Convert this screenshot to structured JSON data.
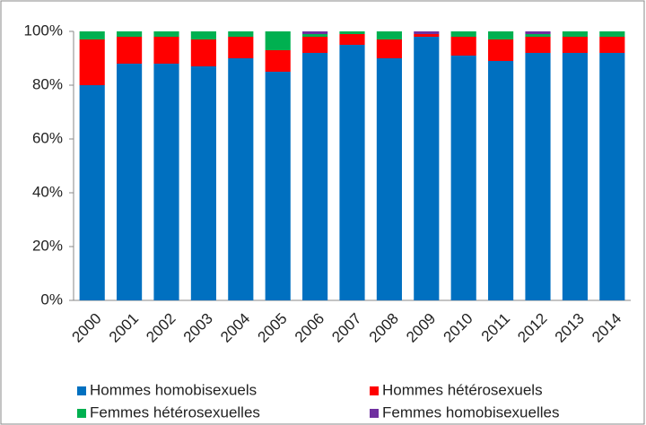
{
  "chart_data": {
    "type": "stacked_bar",
    "categories": [
      "2000",
      "2001",
      "2002",
      "2003",
      "2004",
      "2005",
      "2006",
      "2007",
      "2008",
      "2009",
      "2010",
      "2011",
      "2012",
      "2013",
      "2014"
    ],
    "series": [
      {
        "name": "Hommes homobisexuels",
        "color": "#0070c0",
        "values": [
          80,
          88,
          88,
          87,
          90,
          85,
          92,
          95,
          90,
          98,
          91,
          89,
          92,
          92,
          92
        ]
      },
      {
        "name": "Hommes hétérosexuels",
        "color": "#ff0000",
        "values": [
          17,
          10,
          10,
          10,
          8,
          8,
          6,
          4,
          7,
          1,
          7,
          8,
          6,
          6,
          6
        ]
      },
      {
        "name": "Femmes hétérosexuelles",
        "color": "#00b050",
        "values": [
          3,
          2,
          2,
          3,
          2,
          7,
          1,
          1,
          3,
          0,
          2,
          3,
          1,
          2,
          2
        ]
      },
      {
        "name": "Femmes homobisexuelles",
        "color": "#7030a0",
        "values": [
          0,
          0,
          0,
          0,
          0,
          0,
          1,
          0,
          0,
          1,
          0,
          0,
          1,
          0,
          0
        ]
      }
    ],
    "ylim": [
      0,
      100
    ],
    "yticks": [
      {
        "value": 0,
        "label": "0%"
      },
      {
        "value": 20,
        "label": "20%"
      },
      {
        "value": 40,
        "label": "40%"
      },
      {
        "value": 60,
        "label": "60%"
      },
      {
        "value": 80,
        "label": "80%"
      },
      {
        "value": 100,
        "label": "100%"
      }
    ],
    "grid": false
  }
}
